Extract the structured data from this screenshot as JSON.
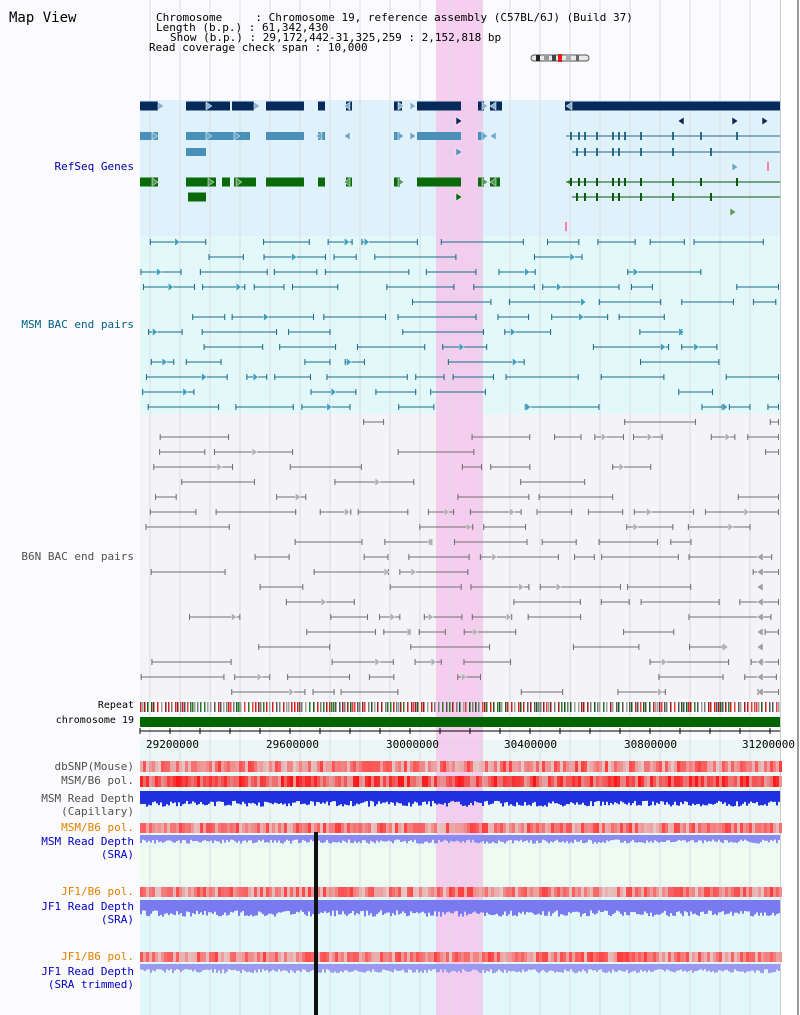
{
  "title": "Map View",
  "header": {
    "chromosome_key": "Chromosome",
    "chromosome_val": "Chromosome 19, reference assembly (C57BL/6J) (Build 37)",
    "length_key": "Length (b.p.)",
    "length_val": "61,342,430",
    "show_key": "Show (b.p.)",
    "show_val": "29,172,442-31,325,259 : 2,152,818 bp",
    "coverage_key": "Read coverage check span",
    "coverage_val": "10,000"
  },
  "tracks": {
    "refseq": "RefSeq Genes",
    "msm_bac": "MSM BAC end pairs",
    "b6n_bac": "B6N BAC end pairs",
    "repeat": "Repeat",
    "chromosome": "chromosome 19",
    "dbsnp": "dbSNP(Mouse)",
    "msm_b6_pol": "MSM/B6 pol.",
    "msm_depth_cap_1": "MSM Read Depth",
    "msm_depth_cap_2": "(Capillary)",
    "msm_b6_pol_2": "MSM/B6 pol.",
    "msm_depth_sra_1": "MSM Read Depth",
    "msm_depth_sra_2": "(SRA)",
    "jf1_pol_1": "JF1/B6 pol.",
    "jf1_depth_sra_1": "JF1 Read Depth",
    "jf1_depth_sra_2": "(SRA)",
    "jf1_pol_2": "JF1/B6 pol.",
    "jf1_depth_trim_1": "JF1 Read Depth",
    "jf1_depth_trim_2": "(SRA trimmed)"
  },
  "axis": {
    "ticks": [
      "29200000",
      "29600000",
      "30000000",
      "30400000",
      "30800000",
      "31200000"
    ]
  },
  "colors": {
    "refseq_label": "#0000a0",
    "bac_label": "#006080",
    "gray_label": "#505050",
    "orange_label": "#e08000",
    "blue_label": "#0000c0",
    "highlight": "#f5c6ec",
    "chrom_bar": "#006400"
  }
}
